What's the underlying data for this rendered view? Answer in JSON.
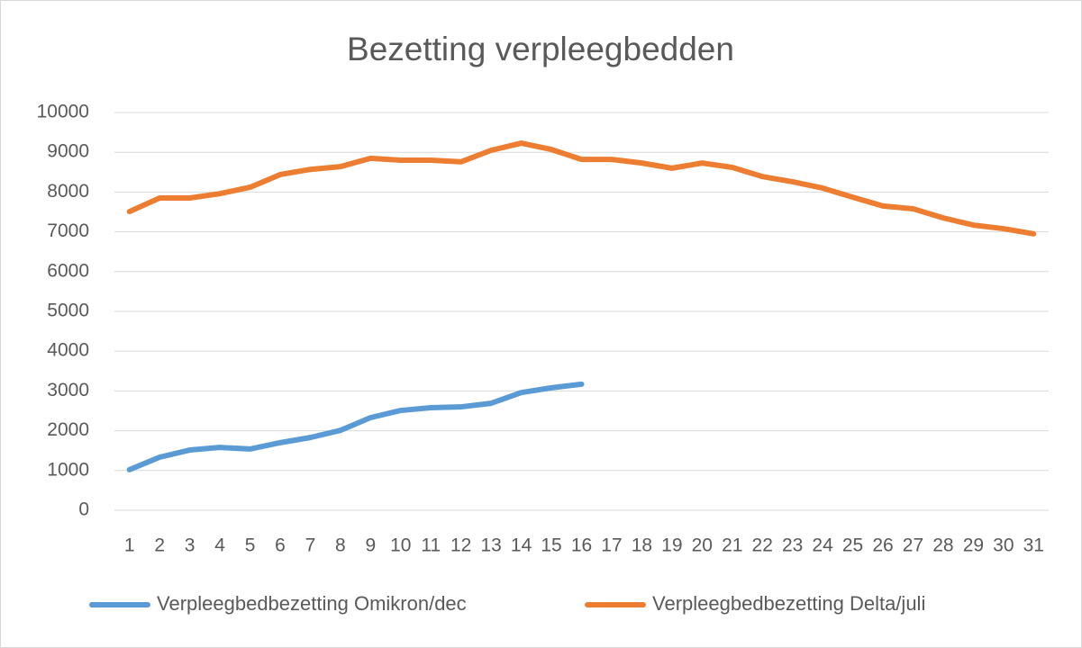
{
  "chart_data": {
    "type": "line",
    "title": "Bezetting verpleegbedden",
    "categories": [
      1,
      2,
      3,
      4,
      5,
      6,
      7,
      8,
      9,
      10,
      11,
      12,
      13,
      14,
      15,
      16,
      17,
      18,
      19,
      20,
      21,
      22,
      23,
      24,
      25,
      26,
      27,
      28,
      29,
      30,
      31
    ],
    "series": [
      {
        "name": "Verpleegbedbezetting Omikron/dec",
        "color": "#5b9bd5",
        "values": [
          1020,
          1335,
          1515,
          1580,
          1540,
          1700,
          1830,
          2010,
          2330,
          2510,
          2580,
          2600,
          2690,
          2960,
          3080,
          3170,
          null,
          null,
          null,
          null,
          null,
          null,
          null,
          null,
          null,
          null,
          null,
          null,
          null,
          null,
          null
        ]
      },
      {
        "name": "Verpleegbedbezetting Delta/juli",
        "color": "#ed7d31",
        "values": [
          7510,
          7850,
          7850,
          7960,
          8120,
          8440,
          8570,
          8640,
          8850,
          8800,
          8800,
          8760,
          9050,
          9230,
          9070,
          8820,
          8820,
          8730,
          8600,
          8730,
          8620,
          8390,
          8260,
          8100,
          7870,
          7650,
          7580,
          7350,
          7170,
          7080,
          6950
        ]
      }
    ],
    "ylim": [
      0,
      10000
    ],
    "yticks": [
      0,
      1000,
      2000,
      3000,
      4000,
      5000,
      6000,
      7000,
      8000,
      9000,
      10000
    ],
    "grid": true,
    "legend": "bottom"
  }
}
